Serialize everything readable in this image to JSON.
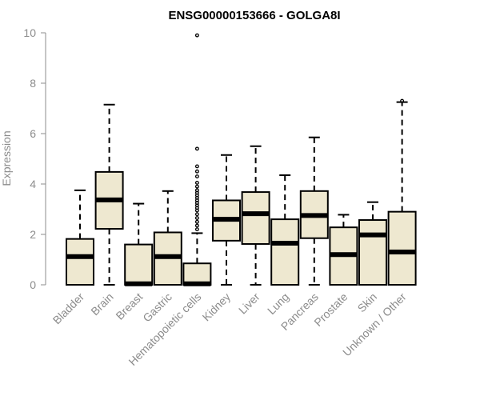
{
  "chart_data": {
    "type": "boxplot",
    "title": "ENSG00000153666 - GOLGA8I",
    "xlabel": "",
    "ylabel": "Expression",
    "ylim": [
      0,
      10
    ],
    "yticks": [
      0,
      2,
      4,
      6,
      8,
      10
    ],
    "grid": false,
    "colors": {
      "box_fill": "#EEE8D0",
      "stroke": "#000000",
      "axis_text": "#8C8C8C"
    },
    "categories": [
      "Bladder",
      "Brain",
      "Breast",
      "Gastric",
      "Hematopoietic cells",
      "Kidney",
      "Liver",
      "Lung",
      "Pancreas",
      "Prostate",
      "Skin",
      "Unknown / Other"
    ],
    "boxes": [
      {
        "min": 0,
        "q1": 0,
        "median": 1.12,
        "q3": 1.82,
        "max": 3.75,
        "outliers": []
      },
      {
        "min": 0,
        "q1": 2.22,
        "median": 3.37,
        "q3": 4.48,
        "max": 7.15,
        "outliers": []
      },
      {
        "min": 0,
        "q1": 0,
        "median": 0.04,
        "q3": 1.6,
        "max": 3.22,
        "outliers": []
      },
      {
        "min": 0,
        "q1": 0,
        "median": 1.12,
        "q3": 2.08,
        "max": 3.72,
        "outliers": []
      },
      {
        "min": 0,
        "q1": 0,
        "median": 0.04,
        "q3": 0.85,
        "max": 2.05,
        "outliers": [
          2.2,
          2.35,
          2.5,
          2.65,
          2.8,
          2.95,
          3.05,
          3.15,
          3.25,
          3.35,
          3.45,
          3.55,
          3.65,
          3.75,
          3.9,
          4.05,
          4.3,
          4.5,
          4.7,
          5.4,
          9.9
        ]
      },
      {
        "min": 0,
        "q1": 1.75,
        "median": 2.6,
        "q3": 3.35,
        "max": 5.15,
        "outliers": []
      },
      {
        "min": 0,
        "q1": 1.62,
        "median": 2.82,
        "q3": 3.68,
        "max": 5.5,
        "outliers": []
      },
      {
        "min": 0,
        "q1": 0,
        "median": 1.65,
        "q3": 2.6,
        "max": 4.35,
        "outliers": []
      },
      {
        "min": 0,
        "q1": 1.85,
        "median": 2.75,
        "q3": 3.72,
        "max": 5.85,
        "outliers": []
      },
      {
        "min": 0,
        "q1": 0,
        "median": 1.2,
        "q3": 2.28,
        "max": 2.78,
        "outliers": []
      },
      {
        "min": 0,
        "q1": 0,
        "median": 1.98,
        "q3": 2.57,
        "max": 3.28,
        "outliers": []
      },
      {
        "min": 0,
        "q1": 0,
        "median": 1.3,
        "q3": 2.9,
        "max": 7.25,
        "outliers": [
          7.3
        ]
      }
    ]
  }
}
